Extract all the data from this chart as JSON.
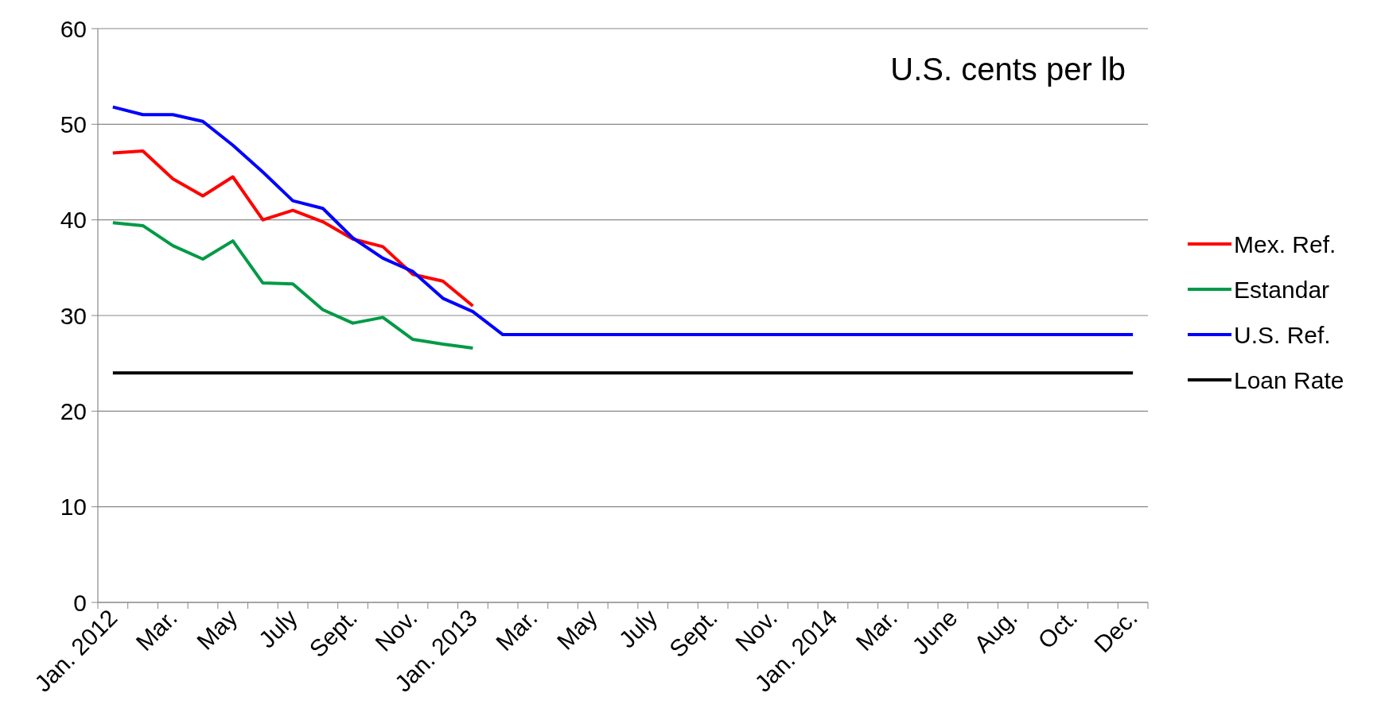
{
  "chart_data": {
    "type": "line",
    "title": "U.S. cents per lb",
    "categories": [
      "Jan. 2012",
      null,
      "Mar.",
      null,
      "May",
      null,
      "July",
      null,
      "Sept.",
      null,
      "Nov.",
      null,
      "Jan. 2013",
      null,
      "Mar.",
      null,
      "May",
      null,
      "July",
      null,
      "Sept.",
      null,
      "Nov.",
      null,
      "Jan. 2014",
      null,
      "Mar.",
      null,
      "June",
      null,
      "Aug.",
      null,
      "Oct.",
      null,
      "Dec."
    ],
    "series": [
      {
        "name": "Mex. Ref.",
        "color": "#ff0000",
        "values": [
          47.0,
          47.2,
          44.3,
          42.5,
          44.5,
          40.0,
          41.0,
          39.8,
          38.0,
          37.2,
          34.3,
          33.6,
          31.0,
          null,
          null,
          null,
          null,
          null,
          null,
          null,
          null,
          null,
          null,
          null,
          null,
          null,
          null,
          null,
          null,
          null,
          null,
          null,
          null,
          null,
          null
        ]
      },
      {
        "name": "Estandar",
        "color": "#009a46",
        "values": [
          39.7,
          39.4,
          37.3,
          35.9,
          37.8,
          33.4,
          33.3,
          30.6,
          29.2,
          29.8,
          27.5,
          27.0,
          26.6,
          null,
          null,
          null,
          null,
          null,
          null,
          null,
          null,
          null,
          null,
          null,
          null,
          null,
          null,
          null,
          null,
          null,
          null,
          null,
          null,
          null,
          null
        ]
      },
      {
        "name": "U.S. Ref.",
        "color": "#0000ff",
        "values": [
          51.8,
          51.0,
          51.0,
          50.3,
          47.8,
          45.0,
          42.0,
          41.2,
          38.1,
          36.0,
          34.6,
          31.8,
          30.4,
          28.0,
          28.0,
          28.0,
          28.0,
          28.0,
          28.0,
          28.0,
          28.0,
          28.0,
          28.0,
          28.0,
          28.0,
          28.0,
          28.0,
          28.0,
          28.0,
          28.0,
          28.0,
          28.0,
          28.0,
          28.0,
          28.0
        ]
      },
      {
        "name": "Loan Rate",
        "color": "#000000",
        "values": [
          24,
          24,
          24,
          24,
          24,
          24,
          24,
          24,
          24,
          24,
          24,
          24,
          24,
          24,
          24,
          24,
          24,
          24,
          24,
          24,
          24,
          24,
          24,
          24,
          24,
          24,
          24,
          24,
          24,
          24,
          24,
          24,
          24,
          24,
          24
        ]
      }
    ],
    "ylim": [
      0,
      60
    ],
    "yticks": [
      0,
      10,
      20,
      30,
      40,
      50,
      60
    ],
    "grid": "y",
    "legend": "right",
    "marker": "none",
    "line_style": "solid"
  }
}
